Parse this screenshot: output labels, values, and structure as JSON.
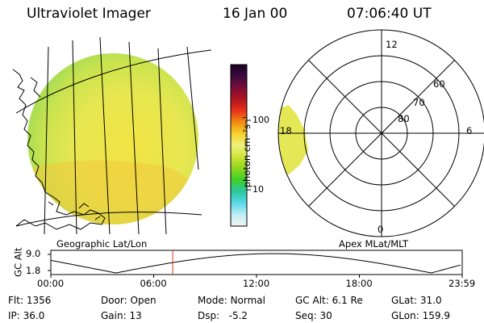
{
  "header": {
    "instrument": "Ultraviolet Imager",
    "date": "16 Jan 00",
    "time": "07:06:40 UT"
  },
  "colors": {
    "disk_fill_main": "#f2e33a",
    "disk_fill_edge": "#b5e24a",
    "axis": "#000000",
    "time_marker": "#e0302a"
  },
  "colorbar": {
    "unit_label": "photon cm⁻²s⁻¹",
    "ticks": [
      "100",
      "10"
    ],
    "stops": [
      "#1a0022",
      "#3a0a40",
      "#7a0c3a",
      "#b0141e",
      "#e8321a",
      "#f08c12",
      "#f6d22a",
      "#eef07a",
      "#cfe43a",
      "#8fd61e",
      "#3ed02a",
      "#2ac8a0",
      "#5ad8e8",
      "#bfeef4",
      "#f2f2f2"
    ]
  },
  "geo_panel": {
    "label": "Geographic Lat/Lon"
  },
  "polar_panel": {
    "label": "Apex MLat/MLT",
    "mlt_labels": {
      "top": "12",
      "bottom": "0",
      "left": "18",
      "right": "6"
    },
    "mlat_labels": [
      "60",
      "70",
      "80"
    ]
  },
  "altitude_plot": {
    "ylabel": "GC Alt",
    "ytick_top": "9.0",
    "ytick_bottom": "1.8",
    "xticks": [
      "00:00",
      "06:00",
      "12:00",
      "18:00",
      "23:59"
    ],
    "marker_time_hours": 7.11
  },
  "status": {
    "row1": [
      {
        "label": "Flt:",
        "value": "1356"
      },
      {
        "label": "Door:",
        "value": "Open"
      },
      {
        "label": "Mode:",
        "value": "Normal"
      },
      {
        "label": "GC Alt:",
        "value": "6.1 Re"
      },
      {
        "label": "GLat:",
        "value": "31.0"
      }
    ],
    "row2": [
      {
        "label": "IP:",
        "value": "36.0"
      },
      {
        "label": "Gain:",
        "value": "13"
      },
      {
        "label": "Dsp:",
        "value": "-5.2"
      },
      {
        "label": "Seq:",
        "value": "30"
      },
      {
        "label": "GLon:",
        "value": "159.9"
      }
    ]
  }
}
